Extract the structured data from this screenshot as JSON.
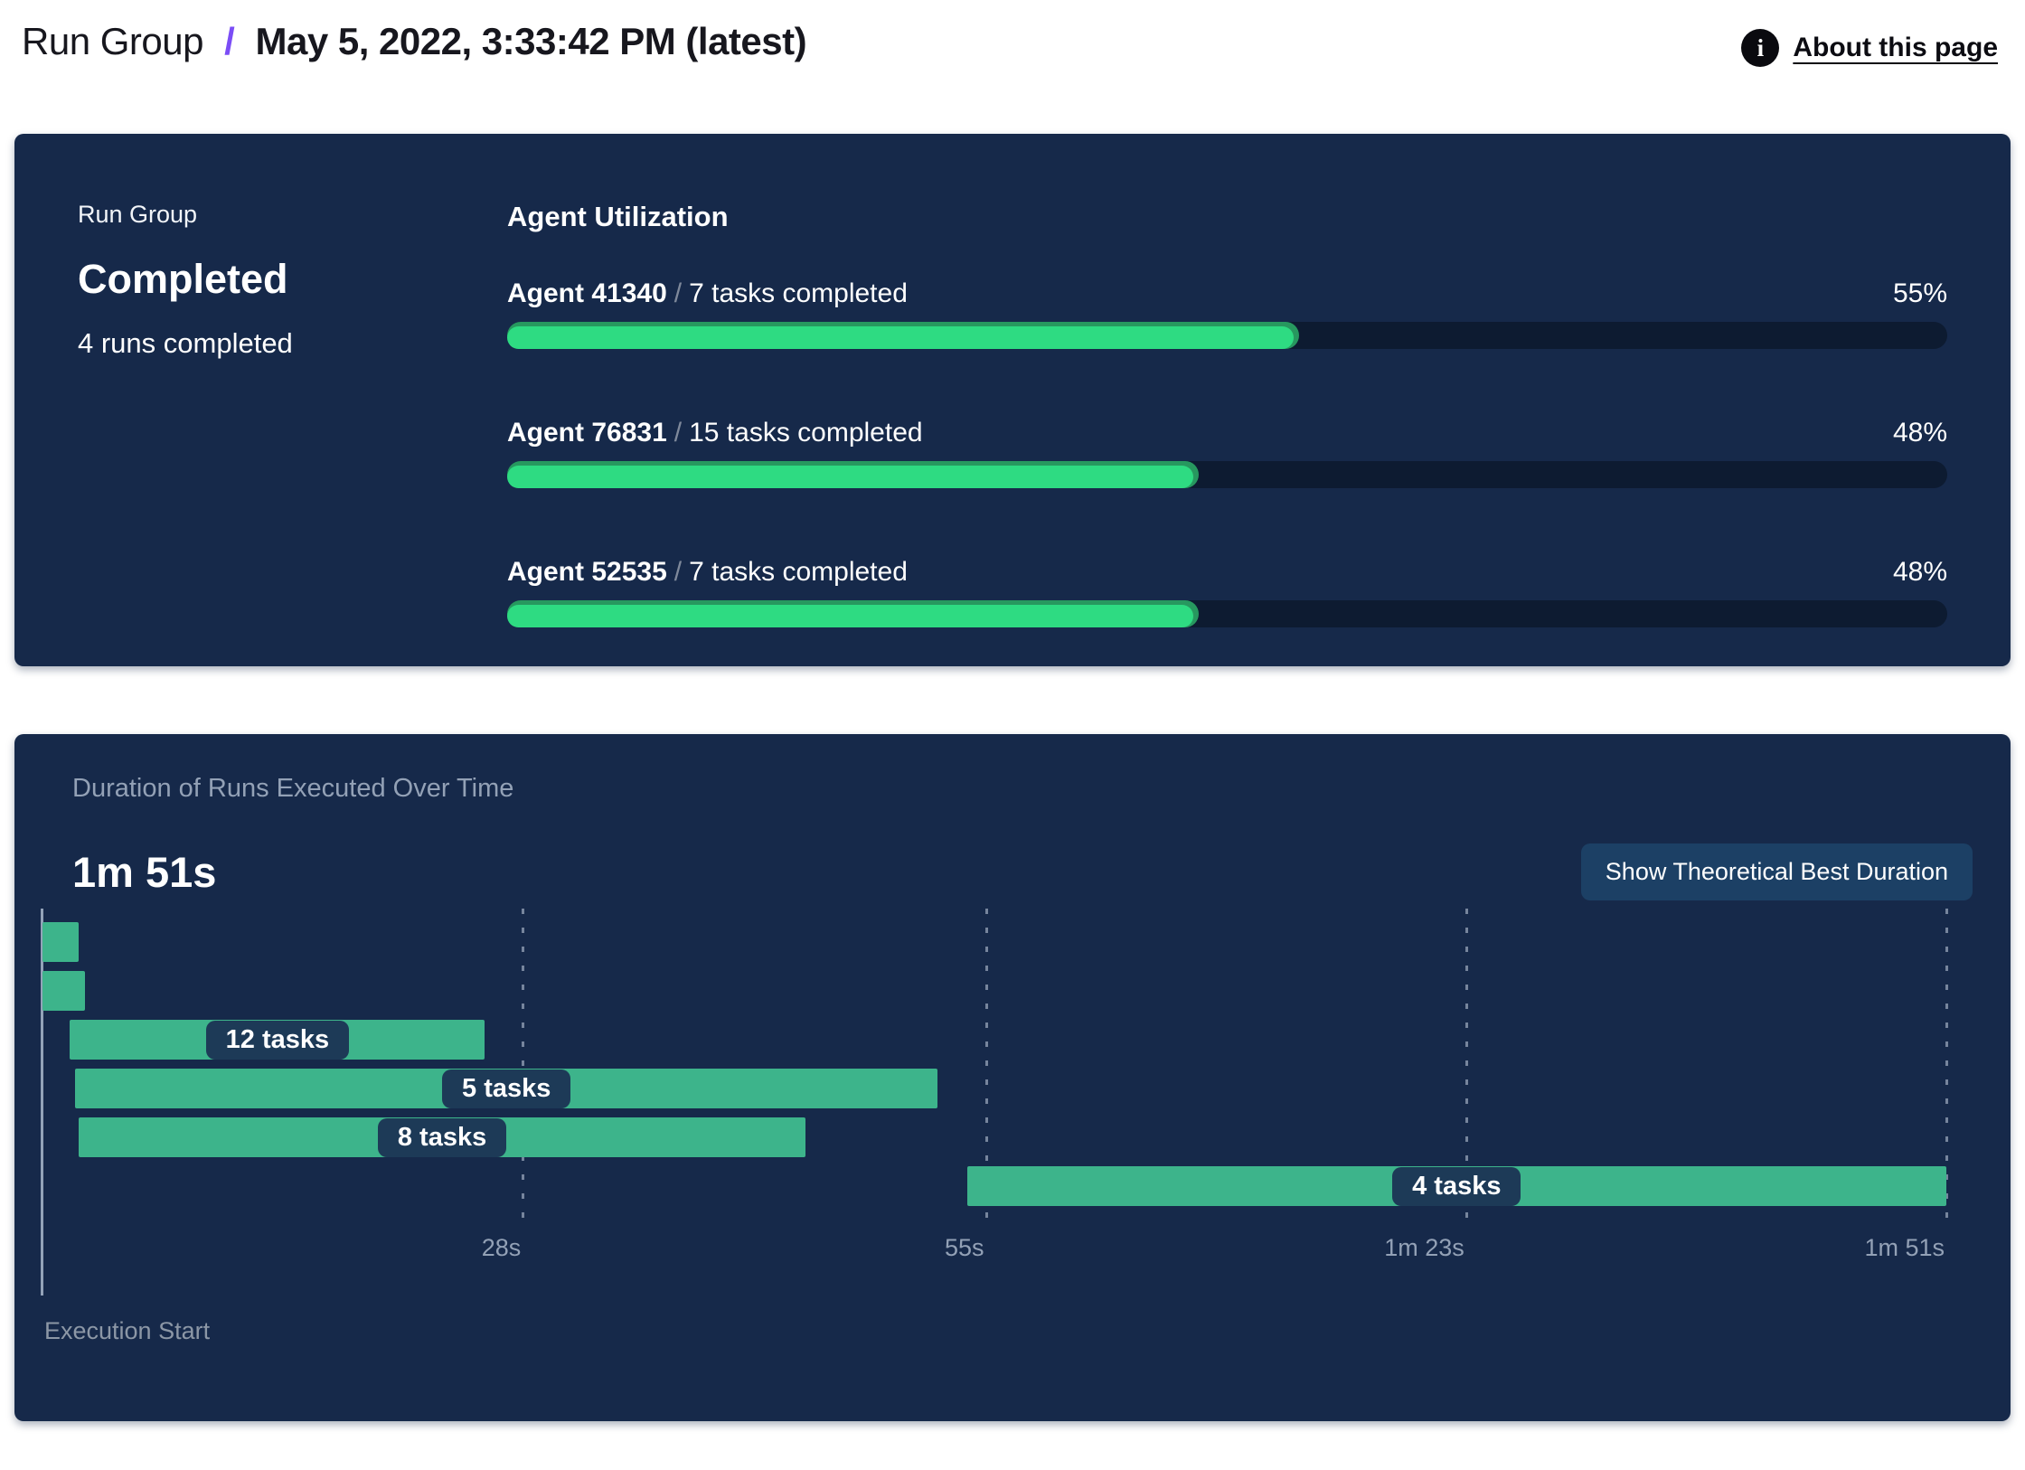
{
  "header": {
    "breadcrumb": "Run Group",
    "separator": "/",
    "title": "May 5, 2022, 3:33:42 PM (latest)",
    "about_link": "About this page",
    "info_icon_glyph": "i"
  },
  "status_card": {
    "label": "Run Group",
    "status": "Completed",
    "sub": "4 runs completed",
    "utilization": {
      "heading": "Agent Utilization",
      "separator": "/",
      "agents": [
        {
          "name": "Agent 41340",
          "tasks": "7 tasks completed",
          "pct": 55,
          "pct_label": "55%"
        },
        {
          "name": "Agent 76831",
          "tasks": "15 tasks completed",
          "pct": 48,
          "pct_label": "48%"
        },
        {
          "name": "Agent 52535",
          "tasks": "7 tasks completed",
          "pct": 48,
          "pct_label": "48%"
        }
      ]
    }
  },
  "duration_card": {
    "title": "Duration of Runs Executed Over Time",
    "total_duration": "1m 51s",
    "button_label": "Show Theoretical Best Duration",
    "execution_start_label": "Execution Start"
  },
  "chart_data": {
    "type": "gantt",
    "title": "Duration of Runs Executed Over Time",
    "total_duration_label": "1m 51s",
    "x_unit": "seconds",
    "x_range": [
      0,
      111
    ],
    "x_ticks": [
      {
        "label": "28s",
        "sec": 28
      },
      {
        "label": "55s",
        "sec": 55
      },
      {
        "label": "1m 23s",
        "sec": 83
      },
      {
        "label": "1m 51s",
        "sec": 111
      }
    ],
    "runs": [
      {
        "start_sec": 0,
        "end_sec": 2.1,
        "label": ""
      },
      {
        "start_sec": 0,
        "end_sec": 2.5,
        "label": ""
      },
      {
        "start_sec": 1.6,
        "end_sec": 25.8,
        "label": "12 tasks"
      },
      {
        "start_sec": 1.9,
        "end_sec": 52.2,
        "label": "5 tasks"
      },
      {
        "start_sec": 2.1,
        "end_sec": 44.5,
        "label": "8 tasks"
      },
      {
        "start_sec": 53.9,
        "end_sec": 111,
        "label": "4 tasks"
      }
    ],
    "axis_label": "Execution Start",
    "legend": "none",
    "grid": "dashed-vertical",
    "colors": {
      "bar": "#3db48b",
      "chip_bg": "#1d3a57",
      "progress_fill": "#2edb82",
      "progress_fill_dark": "#27985f",
      "progress_track": "#0d1b31",
      "card_bg": "#16294a",
      "accent_purple": "#7b4df6",
      "muted_text": "#93a1b6",
      "button_bg": "#1c4065"
    }
  }
}
